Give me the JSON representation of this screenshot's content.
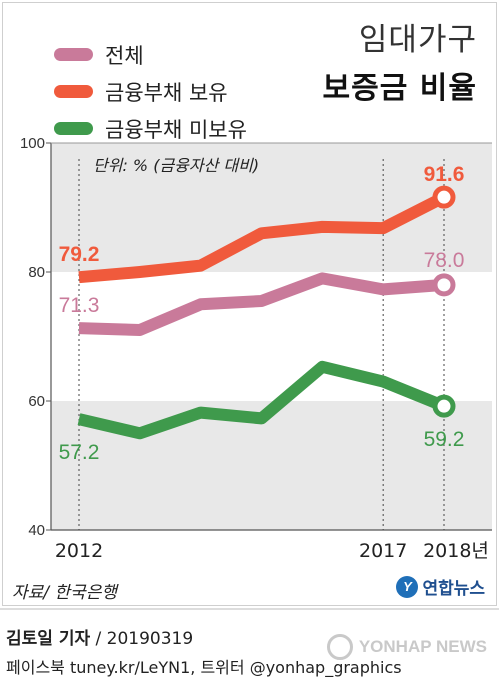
{
  "title": {
    "line1": "임대가구",
    "line2": "보증금 비율"
  },
  "unit_note": "단위: % (금융자산 대비)",
  "source": "자료/ 한국은행",
  "brand": "연합뉴스",
  "credit": {
    "author": "김토일 기자",
    "date": " / 20190319"
  },
  "social": "페이스북 tuney.kr/LeYN1, 트위터 @yonhap_graphics",
  "watermark": "YONHAP NEWS",
  "colors": {
    "total": "#c97a9a",
    "debt": "#f05a3c",
    "nodebt": "#3f9a4c",
    "band": "#e8e8e8"
  },
  "chart_data": {
    "type": "line",
    "x": [
      2012,
      2013,
      2014,
      2015,
      2016,
      2017,
      2018
    ],
    "x_tick_labels": [
      "2012",
      "",
      "",
      "",
      "",
      "2017",
      "2018년"
    ],
    "ylim": [
      40,
      100
    ],
    "y_ticks": [
      40,
      60,
      80,
      100
    ],
    "series": [
      {
        "name": "전체",
        "color_key": "total",
        "values": [
          71.3,
          71.0,
          75.0,
          75.5,
          79.0,
          77.3,
          78.0
        ]
      },
      {
        "name": "금융부채 보유",
        "color_key": "debt",
        "values": [
          79.2,
          80.0,
          81.0,
          86.0,
          87.0,
          86.8,
          91.6
        ]
      },
      {
        "name": "금융부채 미보유",
        "color_key": "nodebt",
        "values": [
          57.2,
          55.0,
          58.2,
          57.3,
          65.3,
          63.0,
          59.2
        ]
      }
    ],
    "data_labels": [
      {
        "series": 1,
        "index": 0,
        "text": "79.2"
      },
      {
        "series": 1,
        "index": 6,
        "text": "91.6"
      },
      {
        "series": 0,
        "index": 0,
        "text": "71.3"
      },
      {
        "series": 0,
        "index": 6,
        "text": "78.0"
      },
      {
        "series": 2,
        "index": 0,
        "text": "57.2"
      },
      {
        "series": 2,
        "index": 6,
        "text": "59.2"
      }
    ],
    "gray_bands": [
      [
        80,
        100
      ],
      [
        40,
        60
      ]
    ],
    "dotted_markers_x": [
      2012,
      2017,
      2018
    ],
    "end_markers": true
  }
}
